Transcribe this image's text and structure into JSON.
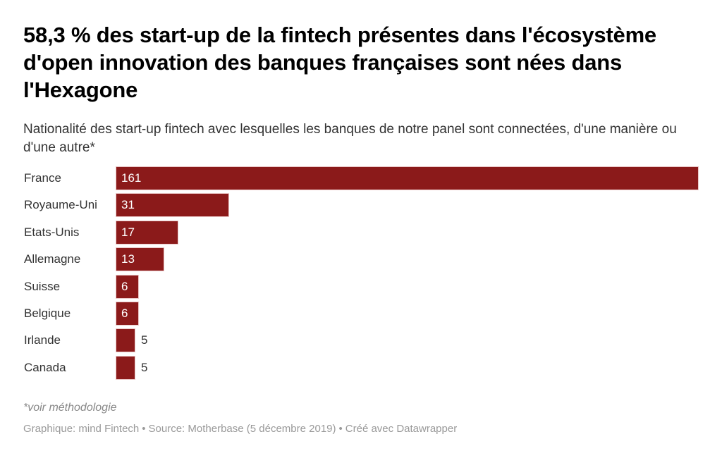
{
  "header": {
    "title": "58,3 % des start-up de la fintech présentes dans l'écosystème d'open innovation des banques françaises sont nées dans l'Hexagone",
    "subtitle": "Nationalité des start-up fintech avec lesquelles les banques de notre panel sont connectées, d'une manière ou d'une autre*"
  },
  "chart_data": {
    "type": "bar",
    "orientation": "horizontal",
    "title": "58,3 % des start-up de la fintech présentes dans l'écosystème d'open innovation des banques françaises sont nées dans l'Hexagone",
    "subtitle": "Nationalité des start-up fintech avec lesquelles les banques de notre panel sont connectées, d'une manière ou d'une autre*",
    "categories": [
      "France",
      "Royaume-Uni",
      "Etats-Unis",
      "Allemagne",
      "Suisse",
      "Belgique",
      "Irlande",
      "Canada"
    ],
    "values": [
      161,
      31,
      17,
      13,
      6,
      6,
      5,
      5
    ],
    "labels": [
      "161",
      "31",
      "17",
      "13",
      "6",
      "6",
      "5",
      "5"
    ],
    "xlim": [
      0,
      161
    ],
    "grid": false,
    "bar_color": "#8b1a1a",
    "xlabel": "",
    "ylabel": ""
  },
  "footer": {
    "note": "*voir méthodologie",
    "graphic": "Graphique: mind Fintech",
    "source": "Source: Motherbase (5 décembre 2019)",
    "created": "Créé avec Datawrapper",
    "separator": "•"
  }
}
